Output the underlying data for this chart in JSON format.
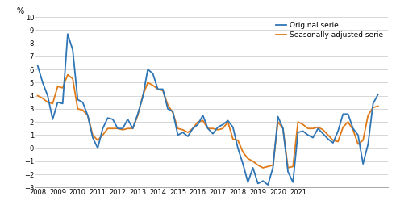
{
  "original": [
    6.3,
    5.0,
    4.0,
    2.2,
    3.5,
    3.4,
    8.7,
    7.5,
    3.7,
    3.5,
    2.5,
    0.8,
    0.0,
    1.5,
    2.3,
    2.2,
    1.5,
    1.5,
    2.2,
    1.5,
    2.6,
    3.9,
    6.0,
    5.7,
    4.5,
    4.5,
    3.0,
    2.8,
    1.0,
    1.2,
    0.9,
    1.5,
    1.8,
    2.5,
    1.5,
    1.1,
    1.6,
    1.8,
    2.1,
    1.6,
    0.0,
    -1.2,
    -2.6,
    -1.5,
    -2.7,
    -2.5,
    -2.8,
    -1.5,
    2.4,
    1.5,
    -1.8,
    -2.6,
    1.2,
    1.3,
    1.0,
    0.8,
    1.5,
    1.1,
    0.7,
    0.4,
    1.3,
    2.6,
    2.6,
    1.5,
    1.0,
    -1.2,
    0.3,
    3.4,
    4.1
  ],
  "seasonal": [
    4.0,
    3.8,
    3.5,
    3.4,
    4.7,
    4.6,
    5.6,
    5.3,
    3.0,
    2.9,
    2.5,
    1.0,
    0.6,
    1.0,
    1.5,
    1.5,
    1.5,
    1.4,
    1.5,
    1.5,
    2.5,
    4.0,
    5.0,
    4.8,
    4.5,
    4.4,
    3.3,
    2.7,
    1.5,
    1.4,
    1.2,
    1.5,
    2.0,
    2.1,
    1.5,
    1.5,
    1.4,
    1.5,
    2.0,
    0.7,
    0.6,
    -0.3,
    -0.8,
    -1.0,
    -1.3,
    -1.5,
    -1.4,
    -1.3,
    2.0,
    1.5,
    -1.5,
    -1.4,
    2.0,
    1.8,
    1.5,
    1.5,
    1.6,
    1.4,
    1.0,
    0.6,
    0.5,
    1.6,
    2.0,
    1.4,
    0.3,
    0.6,
    2.5,
    3.1,
    3.2
  ],
  "start_year": 2008,
  "ylim": [
    -3,
    10
  ],
  "yticks": [
    -3,
    -2,
    -1,
    0,
    1,
    2,
    3,
    4,
    5,
    6,
    7,
    8,
    9,
    10
  ],
  "ylabel": "%",
  "original_color": "#2e75b6",
  "seasonal_color": "#e07b1a",
  "original_label": "Original serie",
  "seasonal_label": "Seasonally adjusted serie",
  "background_color": "#ffffff",
  "grid_color": "#c8c8c8",
  "line_width": 1.3,
  "xtick_years": [
    2008,
    2009,
    2010,
    2011,
    2012,
    2013,
    2014,
    2015,
    2016,
    2017,
    2018,
    2019,
    2020,
    2021
  ]
}
